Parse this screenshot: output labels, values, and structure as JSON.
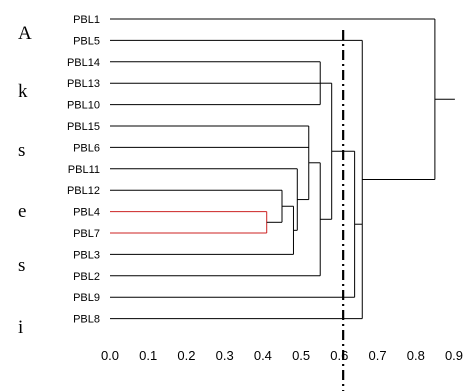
{
  "side_letters": [
    "A",
    "k",
    "s",
    "e",
    "s",
    "i"
  ],
  "axis": {
    "min": 0.0,
    "max": 0.9,
    "ticks": [
      "0.0",
      "0.1",
      "0.2",
      "0.3",
      "0.4",
      "0.5",
      "0.6",
      "0.7",
      "0.8",
      "0.9"
    ]
  },
  "leaves": [
    "PBL1",
    "PBL5",
    "PBL14",
    "PBL13",
    "PBL10",
    "PBL15",
    "PBL6",
    "PBL11",
    "PBL12",
    "PBL4",
    "PBL7",
    "PBL3",
    "PBL2",
    "PBL9",
    "PBL8"
  ],
  "merges": [
    {
      "children": [
        "PBL4",
        "PBL7"
      ],
      "height": 0.41,
      "color": "#cc2222"
    },
    {
      "children": [
        "PBL14",
        "PBL13",
        "PBL10"
      ],
      "height": 0.55
    },
    {
      "children": [
        "PBL12",
        "m1"
      ],
      "height": 0.45
    },
    {
      "children": [
        "m3",
        "PBL3"
      ],
      "height": 0.48
    },
    {
      "children": [
        "PBL11",
        "m4"
      ],
      "height": 0.49
    },
    {
      "children": [
        "PBL15",
        "PBL6",
        "m5"
      ],
      "height": 0.52
    },
    {
      "children": [
        "m6",
        "PBL2"
      ],
      "height": 0.55
    },
    {
      "children": [
        "m2",
        "m7"
      ],
      "height": 0.58
    },
    {
      "children": [
        "m8",
        "PBL9"
      ],
      "height": 0.64
    },
    {
      "children": [
        "PBL5",
        "m9",
        "PBL8"
      ],
      "height": 0.66
    },
    {
      "children": [
        "PBL1",
        "m10"
      ],
      "height": 0.85
    }
  ],
  "cut_height": 0.61
}
